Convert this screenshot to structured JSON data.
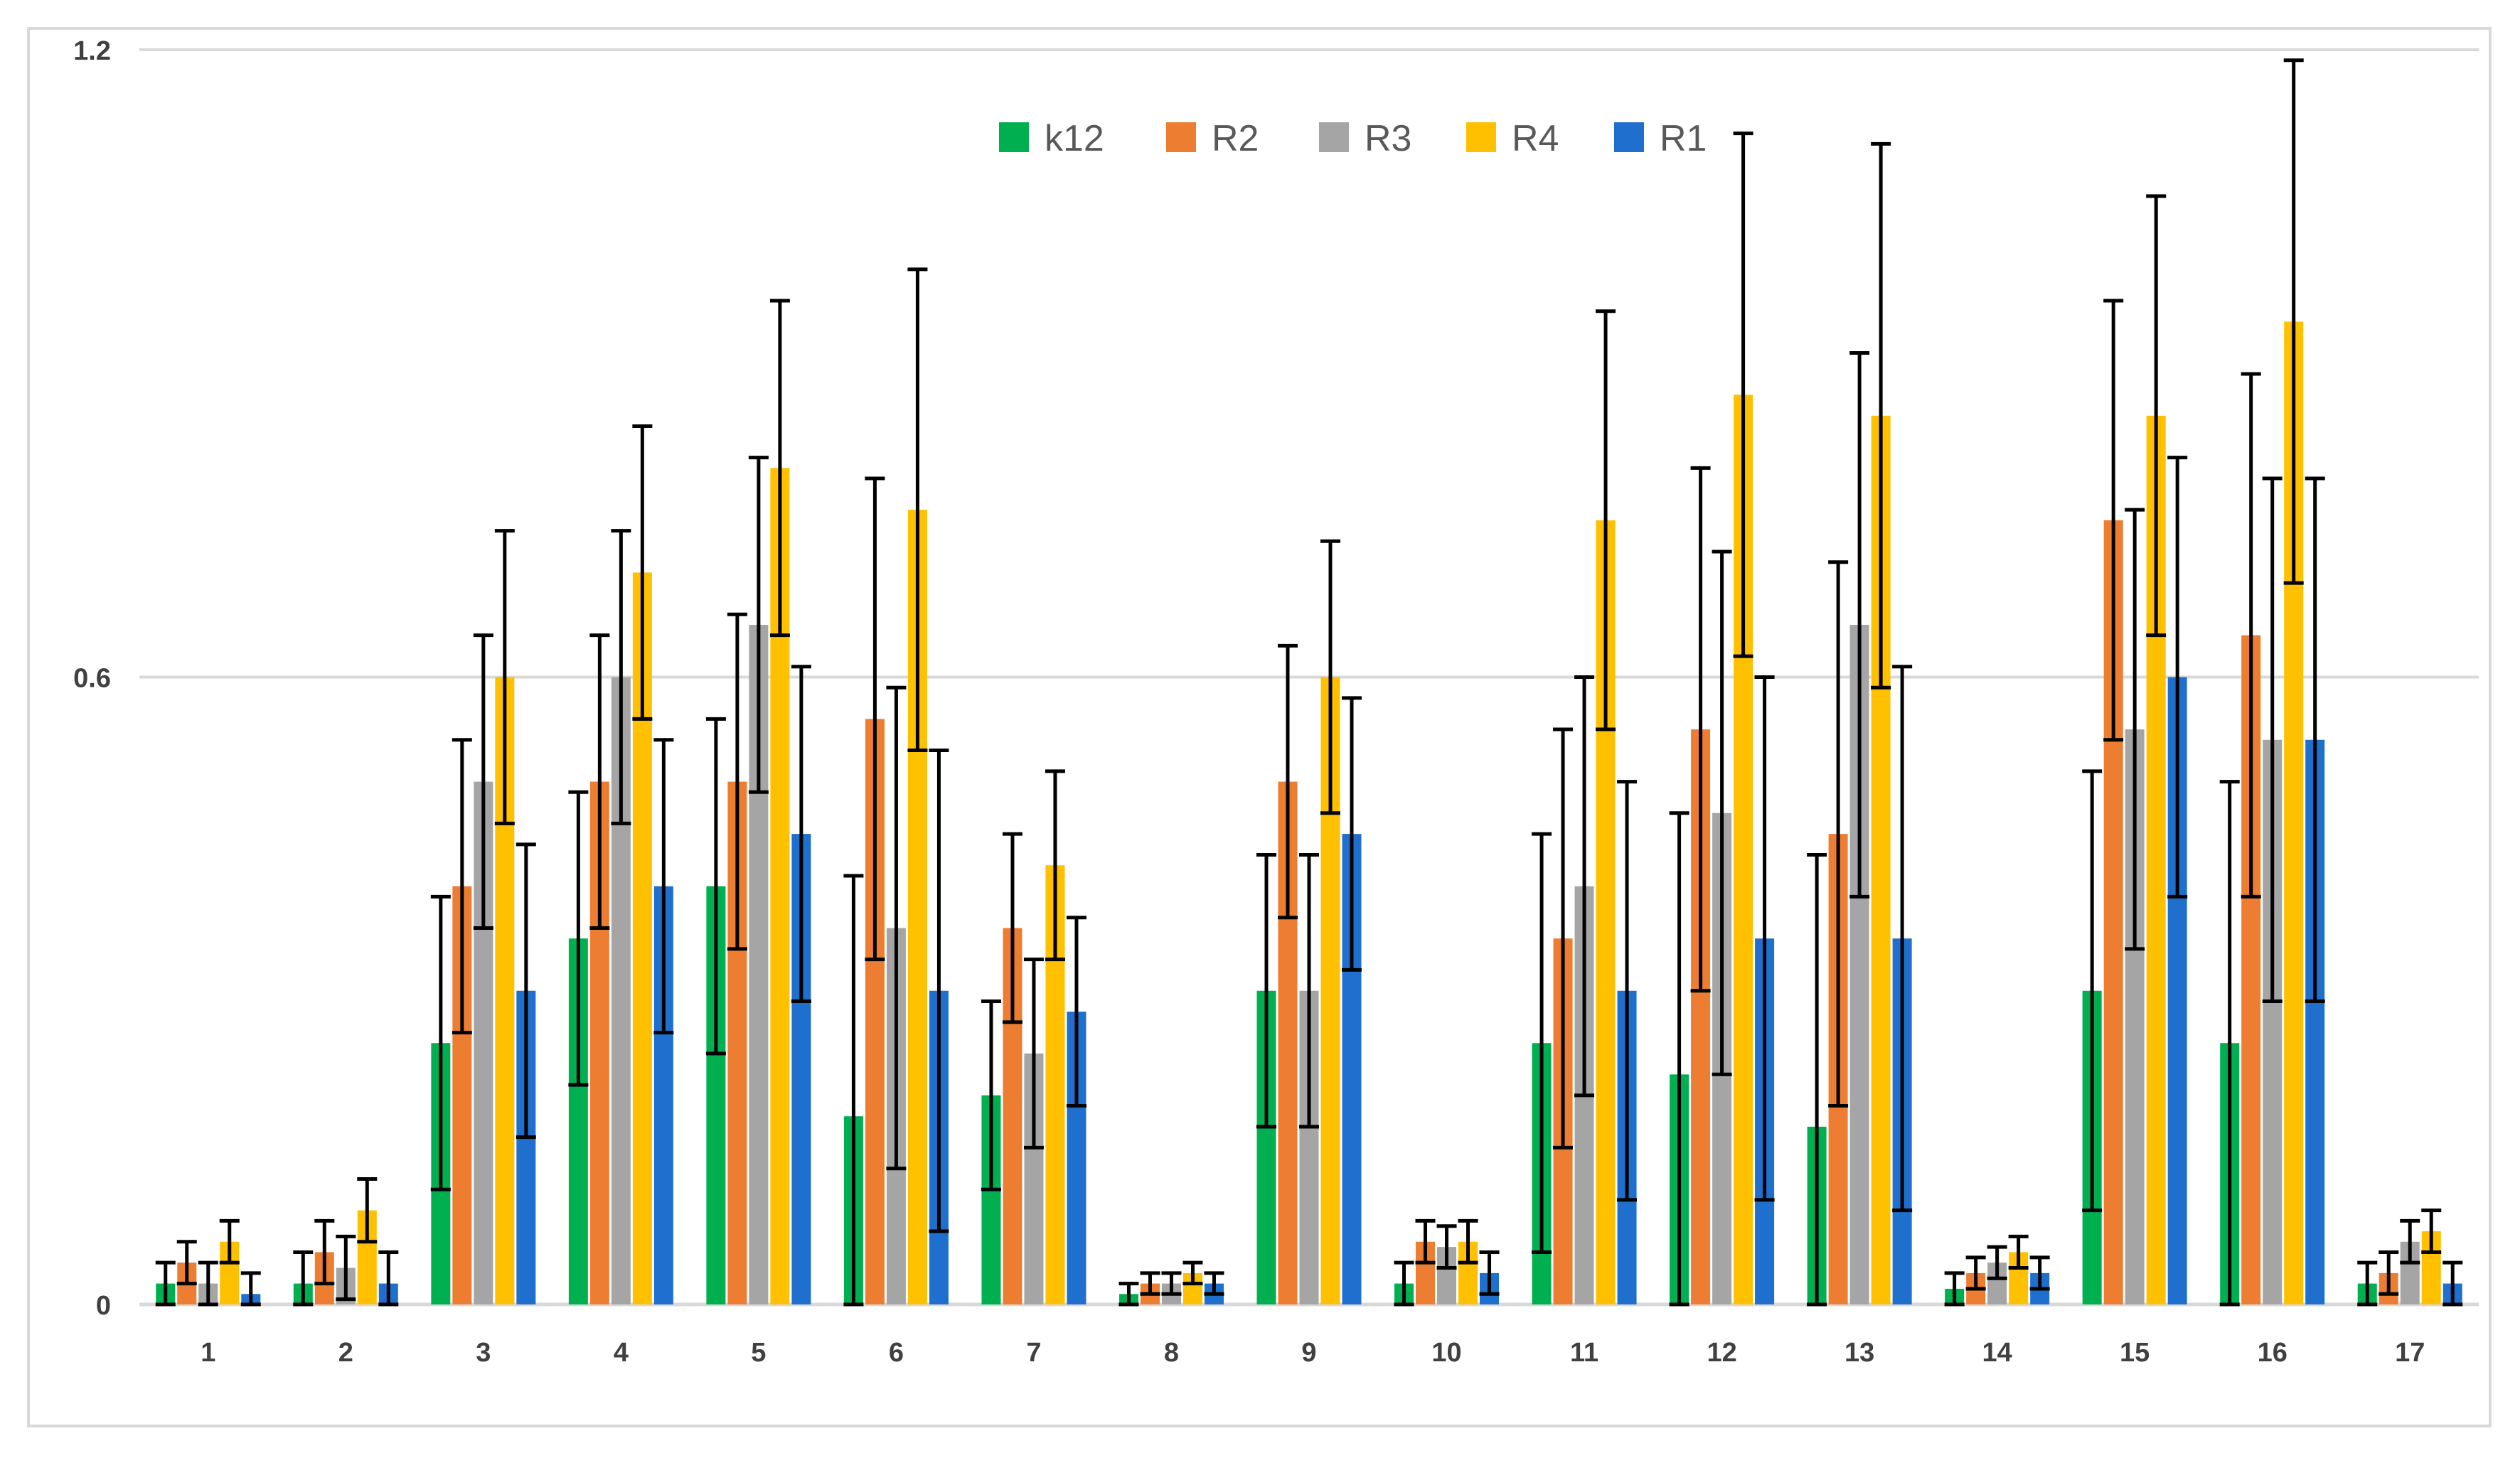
{
  "chart_data": {
    "type": "bar",
    "title": "",
    "xlabel": "",
    "ylabel": "",
    "ylim": [
      0,
      1.2
    ],
    "yticks": [
      0,
      0.6,
      1.2
    ],
    "yticklabels": [
      "0",
      "0.6",
      "1.2"
    ],
    "grid": true,
    "legend": "top-center",
    "categories": [
      "1",
      "2",
      "3",
      "4",
      "5",
      "6",
      "7",
      "8",
      "9",
      "10",
      "11",
      "12",
      "13",
      "14",
      "15",
      "16",
      "17"
    ],
    "series": [
      {
        "name": "k12",
        "color": "#00b050",
        "values": [
          0.02,
          0.02,
          0.25,
          0.35,
          0.4,
          0.18,
          0.2,
          0.01,
          0.3,
          0.02,
          0.25,
          0.22,
          0.17,
          0.015,
          0.3,
          0.25,
          0.02
        ],
        "errors": [
          0.02,
          0.03,
          0.14,
          0.14,
          0.16,
          0.23,
          0.09,
          0.01,
          0.13,
          0.02,
          0.2,
          0.25,
          0.26,
          0.015,
          0.21,
          0.25,
          0.02
        ]
      },
      {
        "name": "R2",
        "color": "#ed7d31",
        "values": [
          0.04,
          0.05,
          0.4,
          0.5,
          0.5,
          0.56,
          0.36,
          0.02,
          0.5,
          0.06,
          0.35,
          0.55,
          0.45,
          0.03,
          0.75,
          0.64,
          0.03
        ],
        "errors": [
          0.02,
          0.03,
          0.14,
          0.14,
          0.16,
          0.23,
          0.09,
          0.01,
          0.13,
          0.02,
          0.2,
          0.25,
          0.26,
          0.015,
          0.21,
          0.25,
          0.02
        ]
      },
      {
        "name": "R3",
        "color": "#a5a5a5",
        "values": [
          0.02,
          0.035,
          0.5,
          0.6,
          0.65,
          0.36,
          0.24,
          0.02,
          0.3,
          0.055,
          0.4,
          0.47,
          0.65,
          0.04,
          0.55,
          0.54,
          0.06
        ],
        "errors": [
          0.02,
          0.03,
          0.14,
          0.14,
          0.16,
          0.23,
          0.09,
          0.01,
          0.13,
          0.02,
          0.2,
          0.25,
          0.26,
          0.015,
          0.21,
          0.25,
          0.02
        ]
      },
      {
        "name": "R4",
        "color": "#ffc000",
        "values": [
          0.06,
          0.09,
          0.6,
          0.7,
          0.8,
          0.76,
          0.42,
          0.03,
          0.6,
          0.06,
          0.75,
          0.87,
          0.85,
          0.05,
          0.85,
          0.94,
          0.07
        ],
        "errors": [
          0.02,
          0.03,
          0.14,
          0.14,
          0.16,
          0.23,
          0.09,
          0.01,
          0.13,
          0.02,
          0.2,
          0.25,
          0.26,
          0.015,
          0.21,
          0.25,
          0.02
        ]
      },
      {
        "name": "R1",
        "color": "#1f6fce",
        "values": [
          0.01,
          0.02,
          0.3,
          0.4,
          0.45,
          0.3,
          0.28,
          0.02,
          0.45,
          0.03,
          0.3,
          0.35,
          0.35,
          0.03,
          0.6,
          0.54,
          0.02
        ],
        "errors": [
          0.02,
          0.03,
          0.14,
          0.14,
          0.16,
          0.23,
          0.09,
          0.01,
          0.13,
          0.02,
          0.2,
          0.25,
          0.26,
          0.015,
          0.21,
          0.25,
          0.02
        ]
      }
    ],
    "legend_order": [
      "k12",
      "R2",
      "R3",
      "R4",
      "R1"
    ],
    "axis_color": "#d9d9d9",
    "error_bar_color": "#000000"
  }
}
